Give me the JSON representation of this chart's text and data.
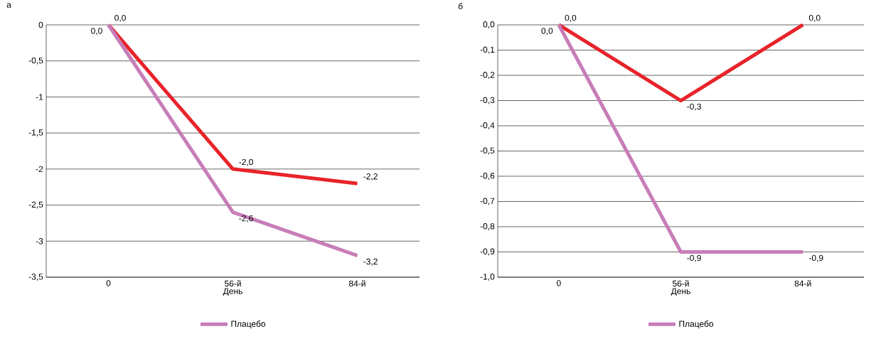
{
  "chart_data": [
    {
      "type": "line",
      "title": "а",
      "xlabel": "День",
      "categories": [
        "0",
        "56-й",
        "84-й"
      ],
      "series": [
        {
          "color": "#e8232a",
          "values": [
            0,
            -2.0,
            -2.2
          ],
          "value_labels": [
            "0,0",
            "-2,0",
            "-2,2"
          ]
        },
        {
          "name": "Плацебо",
          "color": "#c77db8",
          "values": [
            0,
            -2.6,
            -3.2
          ],
          "value_labels": [
            "0,0",
            "-2,6",
            "-3,2"
          ]
        }
      ],
      "ylim": [
        -3.5,
        0
      ],
      "yticks": [
        0,
        {
          "value": -0.5,
          "label": "-0,5"
        },
        -1,
        {
          "value": -1.5,
          "label": "-1,5"
        },
        -2,
        {
          "value": -2.5,
          "label": "-2,5"
        },
        -3,
        {
          "value": -3.5,
          "label": "-3,5"
        }
      ],
      "grid": "y",
      "legend": "bottom",
      "marker": "none",
      "line_style": "solid"
    },
    {
      "type": "line",
      "title": "б",
      "xlabel": "День",
      "categories": [
        "0",
        "56-й",
        "84-й"
      ],
      "series": [
        {
          "color": "#e8232a",
          "values": [
            0,
            -0.3,
            0
          ],
          "value_labels": [
            "0,0",
            "-0,3",
            "0,0"
          ]
        },
        {
          "name": "Плацебо",
          "color": "#c77db8",
          "values": [
            0,
            -0.9,
            -0.9
          ],
          "value_labels": [
            "0,0",
            "-0,9",
            "-0,9"
          ]
        }
      ],
      "ylim": [
        -1.0,
        0
      ],
      "yticks": [
        {
          "value": 0,
          "label": "0,0"
        },
        {
          "value": -0.1,
          "label": "-0,1"
        },
        {
          "value": -0.2,
          "label": "-0,2"
        },
        {
          "value": -0.3,
          "label": "-0,3"
        },
        {
          "value": -0.4,
          "label": "-0,4"
        },
        {
          "value": -0.5,
          "label": "-0,5"
        },
        {
          "value": -0.6,
          "label": "-0,6"
        },
        {
          "value": -0.7,
          "label": "-0,7"
        },
        {
          "value": -0.8,
          "label": "-0,8"
        },
        {
          "value": -0.9,
          "label": "-0,9"
        },
        {
          "value": -1.0,
          "label": "-1,0"
        }
      ],
      "grid": "y",
      "legend": "bottom",
      "marker": "none",
      "line_style": "solid"
    }
  ]
}
